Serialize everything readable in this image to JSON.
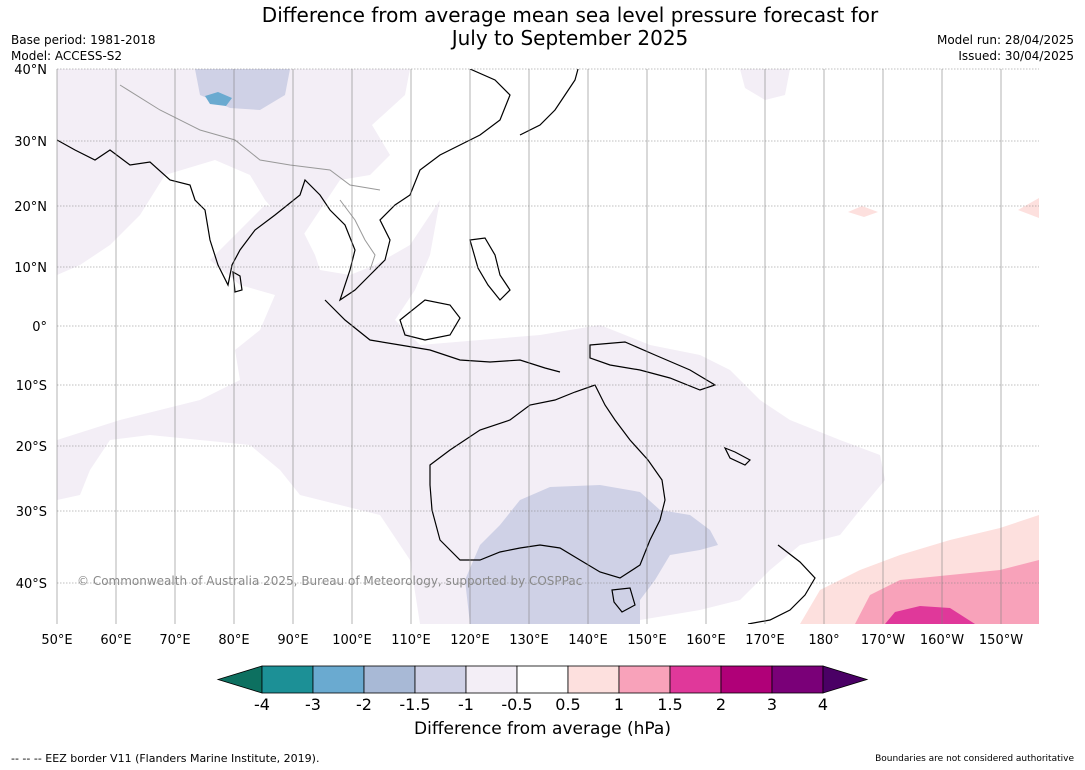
{
  "header": {
    "title": "Difference from average mean sea level pressure forecast for\nJuly to September 2025",
    "base_period": "Base period: 1981-2018",
    "model": "Model: ACCESS-S2",
    "model_run": "Model run: 28/04/2025",
    "issued": "Issued: 30/04/2025"
  },
  "map": {
    "lat_labels": [
      "40°N",
      "30°N",
      "20°N",
      "10°N",
      "0°",
      "10°S",
      "20°S",
      "30°S",
      "40°S"
    ],
    "lon_labels": [
      "50°E",
      "60°E",
      "70°E",
      "80°E",
      "90°E",
      "100°E",
      "110°E",
      "120°E",
      "130°E",
      "140°E",
      "150°E",
      "160°E",
      "170°E",
      "180°",
      "170°W",
      "160°W",
      "150°W"
    ],
    "copyright": "© Commonwealth of Australia 2025, Bureau of Meteorology, supported by COSPPac",
    "land_color": "#ffffff",
    "coast_color": "#000000",
    "border_color": "#999999"
  },
  "colorbar": {
    "ticks": [
      "-4",
      "-3",
      "-2",
      "-1.5",
      "-1",
      "-0.5",
      "0.5",
      "1",
      "1.5",
      "2",
      "3",
      "4"
    ],
    "colors": [
      "#0d7060",
      "#1c9096",
      "#6aaad0",
      "#a8b9d6",
      "#cfd1e6",
      "#f3eef6",
      "#ffffff",
      "#fde0de",
      "#f8a2ba",
      "#e0389a",
      "#b00078",
      "#7a0078",
      "#4a0065"
    ],
    "label": "Difference from average (hPa)"
  },
  "footer": {
    "eez_note": "--  --  -- EEZ border V11 (Flanders Marine Institute, 2019).",
    "boundary_note": "Boundaries are not considered authoritative"
  }
}
